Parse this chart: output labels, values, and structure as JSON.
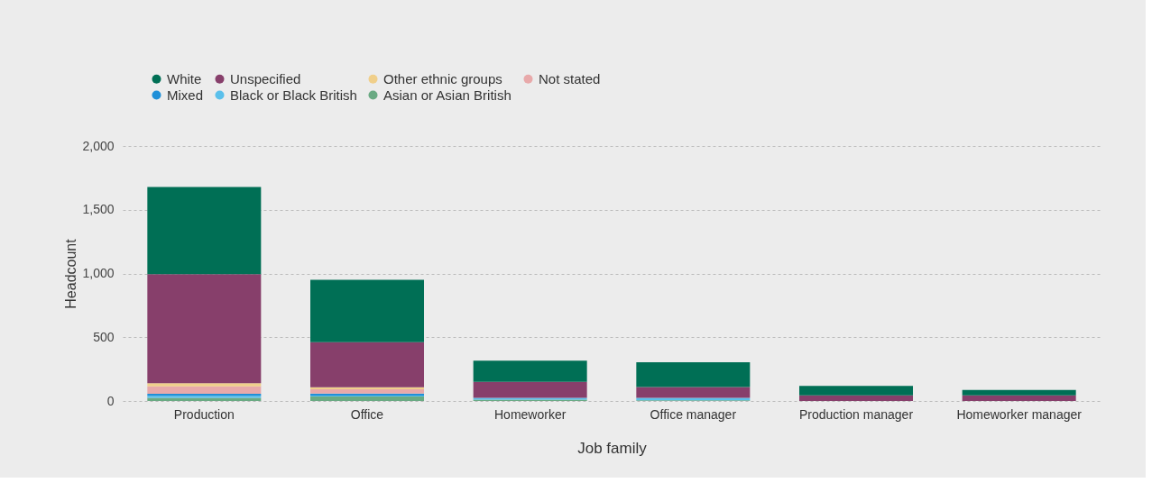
{
  "chart_data": {
    "type": "bar",
    "stacked": true,
    "xlabel": "Job family",
    "ylabel": "Headcount",
    "categories": [
      "Production",
      "Office",
      "Homeworker",
      "Office manager",
      "Production manager",
      "Homeworker manager"
    ],
    "series": [
      {
        "name": "Asian or Asian British",
        "color": "#6aaa83",
        "values": [
          25,
          36,
          10,
          5,
          0,
          0
        ]
      },
      {
        "name": "Black or Black British",
        "color": "#5bc0eb",
        "values": [
          16,
          6,
          15,
          20,
          0,
          0
        ]
      },
      {
        "name": "Mixed",
        "color": "#2090d8",
        "values": [
          16,
          16,
          0,
          0,
          0,
          0
        ]
      },
      {
        "name": "Not stated",
        "color": "#e8a9aa",
        "values": [
          57,
          33,
          0,
          0,
          0,
          0
        ]
      },
      {
        "name": "Other ethnic groups",
        "color": "#f0cf8a",
        "values": [
          25,
          16,
          0,
          0,
          0,
          0
        ]
      },
      {
        "name": "Unspecified",
        "color": "#873f6b",
        "values": [
          856,
          354,
          125,
          84,
          45,
          45
        ]
      },
      {
        "name": "White",
        "color": "#006f55",
        "values": [
          683,
          489,
          167,
          195,
          74,
          41
        ]
      }
    ],
    "ylim": [
      0,
      2000
    ],
    "yticks": [
      0,
      500,
      {
        "value": 1000,
        "label": "1,000"
      },
      {
        "value": 1500,
        "label": "1,500"
      },
      {
        "value": 2000,
        "label": "2,000"
      }
    ],
    "grid": "y",
    "legend": "top"
  }
}
